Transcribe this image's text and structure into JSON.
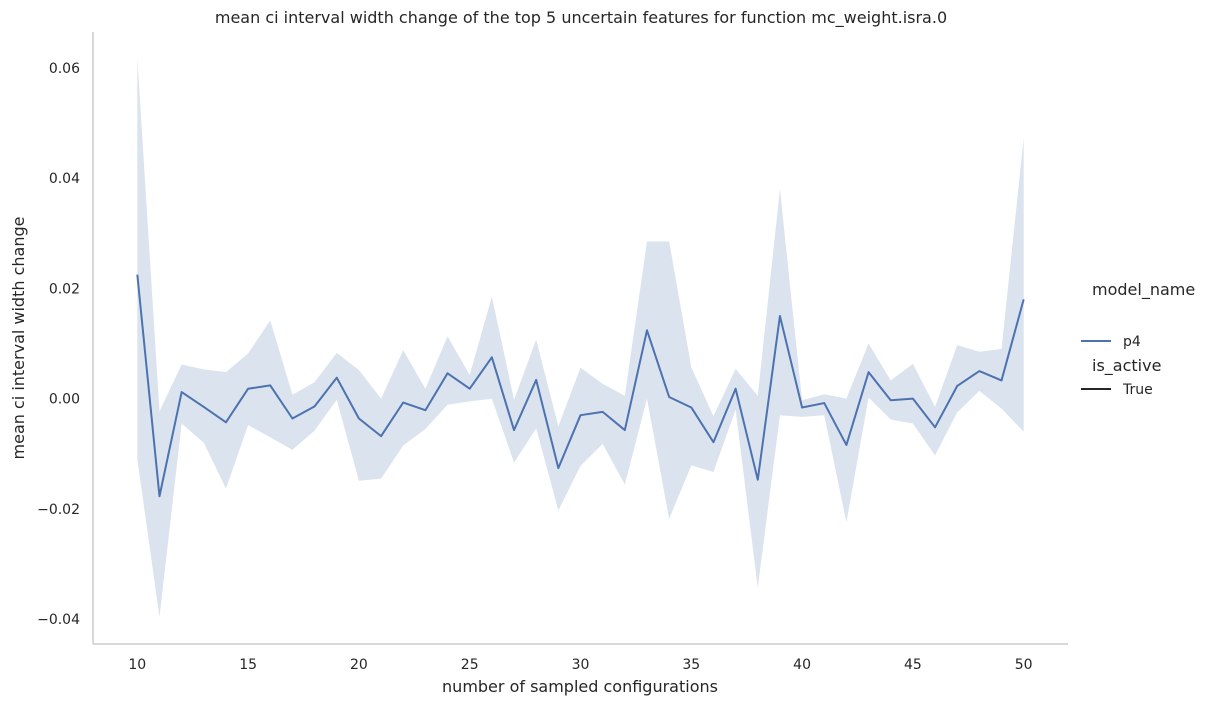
{
  "chart_data": {
    "type": "line",
    "title": "mean ci interval width change of the top 5 uncertain features for function mc_weight.isra.0",
    "xlabel": "number of sampled configurations",
    "ylabel": "mean ci interval width change",
    "xlim": [
      8,
      52
    ],
    "ylim": [
      -0.0445,
      0.0665
    ],
    "x_ticks": [
      10,
      15,
      20,
      25,
      30,
      35,
      40,
      45,
      50
    ],
    "x_tick_labels": [
      "10",
      "15",
      "20",
      "25",
      "30",
      "35",
      "40",
      "45",
      "50"
    ],
    "y_ticks": [
      -0.04,
      -0.02,
      0.0,
      0.02,
      0.04,
      0.06
    ],
    "y_tick_labels": [
      "−0.04",
      "−0.02",
      "0.00",
      "0.02",
      "0.04",
      "0.06"
    ],
    "grid": false,
    "legend": {
      "placement": "right",
      "groups": [
        {
          "title": "model_name",
          "entries": [
            {
              "label": "p4",
              "color": "#4c72b0"
            }
          ]
        },
        {
          "title": "is_active",
          "entries": [
            {
              "label": "True",
              "color": "#262626"
            }
          ]
        }
      ]
    },
    "series": [
      {
        "name": "p4",
        "color": "#4c72b0",
        "band_color": "#4c72b0",
        "x": [
          10,
          11,
          12,
          13,
          14,
          15,
          16,
          17,
          18,
          19,
          20,
          21,
          22,
          23,
          24,
          25,
          26,
          27,
          28,
          29,
          30,
          31,
          32,
          33,
          34,
          35,
          36,
          37,
          38,
          39,
          40,
          41,
          42,
          43,
          44,
          45,
          46,
          47,
          48,
          49,
          50
        ],
        "y": [
          0.0225,
          -0.0177,
          0.0012,
          -0.0015,
          -0.0043,
          0.0018,
          0.0024,
          -0.0036,
          -0.0014,
          0.0038,
          -0.0036,
          -0.0068,
          -0.0007,
          -0.0021,
          0.0046,
          0.0018,
          0.0075,
          -0.0057,
          0.0034,
          -0.0126,
          -0.003,
          -0.0024,
          -0.0057,
          0.0124,
          0.0003,
          -0.0016,
          -0.0079,
          0.0018,
          -0.0147,
          0.015,
          -0.0016,
          -0.0008,
          -0.0084,
          0.0048,
          -0.0003,
          0.0,
          -0.0052,
          0.0023,
          0.005,
          0.0033,
          0.018
        ],
        "lower": [
          -0.011,
          -0.0396,
          -0.0045,
          -0.008,
          -0.0163,
          -0.0048,
          -0.007,
          -0.0093,
          -0.0058,
          -0.0002,
          -0.0149,
          -0.0145,
          -0.0085,
          -0.0055,
          -0.0011,
          -0.0005,
          0.0,
          -0.0116,
          -0.0054,
          -0.0203,
          -0.0122,
          -0.0082,
          -0.0156,
          0.0,
          -0.0218,
          -0.0121,
          -0.0133,
          -0.002,
          -0.0343,
          -0.003,
          -0.0033,
          -0.003,
          -0.0224,
          0.0002,
          -0.0038,
          -0.0045,
          -0.0103,
          -0.0025,
          0.0014,
          -0.0018,
          -0.006
        ],
        "upper": [
          0.0618,
          -0.0023,
          0.0062,
          0.0053,
          0.0048,
          0.0082,
          0.0142,
          0.0007,
          0.003,
          0.0083,
          0.0052,
          0.0,
          0.0088,
          0.0018,
          0.0113,
          0.0043,
          0.0185,
          -0.0002,
          0.0107,
          -0.005,
          0.0056,
          0.0027,
          0.0005,
          0.0285,
          0.0285,
          0.0057,
          -0.0032,
          0.0054,
          0.0005,
          0.038,
          -0.0003,
          0.0008,
          0.0,
          0.01,
          0.0033,
          0.0063,
          -0.0015,
          0.0097,
          0.0085,
          0.009,
          0.0473
        ]
      }
    ]
  }
}
